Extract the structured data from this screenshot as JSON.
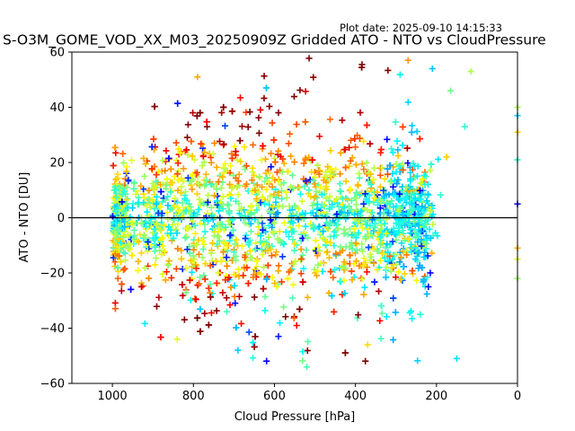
{
  "plot_date": "Plot date: 2025-09-10 14:15:33",
  "chart_data": {
    "type": "scatter",
    "title": "S-O3M_GOME_VOD_XX_M03_20250909Z Gridded ATO - NTO vs CloudPressure",
    "xlabel": "Cloud Pressure [hPa]",
    "ylabel": "ATO - NTO [DU]",
    "xlim": [
      1100,
      0
    ],
    "ylim": [
      -60,
      60
    ],
    "x_ticks": [
      1000,
      800,
      600,
      400,
      200,
      0
    ],
    "y_ticks": [
      -60,
      -40,
      -20,
      0,
      20,
      40,
      60
    ],
    "marker": "+",
    "colormap": "jet",
    "zero_line": true,
    "grid": false,
    "legend": "none",
    "distribution": [
      {
        "x": 985,
        "y": 0,
        "sx": 15,
        "sy": 8
      },
      {
        "x": 900,
        "y": 0,
        "sx": 40,
        "sy": 11
      },
      {
        "x": 800,
        "y": 0,
        "sx": 50,
        "sy": 14
      },
      {
        "x": 700,
        "y": 0,
        "sx": 50,
        "sy": 15
      },
      {
        "x": 600,
        "y": 0,
        "sx": 55,
        "sy": 14
      },
      {
        "x": 500,
        "y": 0,
        "sx": 55,
        "sy": 13
      },
      {
        "x": 400,
        "y": 0,
        "sx": 50,
        "sy": 12
      },
      {
        "x": 310,
        "y": 0,
        "sx": 40,
        "sy": 11
      },
      {
        "x": 250,
        "y": -2,
        "sx": 25,
        "sy": 9
      }
    ],
    "edge_points": [
      {
        "x": 0,
        "y": 5,
        "color": "#0000ff"
      },
      {
        "x": 0,
        "y": 40,
        "color": "#a8ff50"
      },
      {
        "x": 0,
        "y": 37,
        "color": "#00d4ff"
      },
      {
        "x": 0,
        "y": 31,
        "color": "#ffd200"
      },
      {
        "x": 0,
        "y": 21,
        "color": "#2affd0"
      },
      {
        "x": 0,
        "y": -11,
        "color": "#ffb300"
      },
      {
        "x": 0,
        "y": -22,
        "color": "#9aff60"
      },
      {
        "x": 0,
        "y": -15,
        "color": "#e6ff1a"
      },
      {
        "x": 520,
        "y": -54,
        "color": "#46ffb0"
      },
      {
        "x": 150,
        "y": -51,
        "color": "#00e0ff"
      },
      {
        "x": 220,
        "y": -25,
        "color": "#0000ff"
      },
      {
        "x": 210,
        "y": 54,
        "color": "#00c8ff"
      },
      {
        "x": 165,
        "y": 46,
        "color": "#6aff8c"
      },
      {
        "x": 115,
        "y": 53,
        "color": "#aaff4c"
      },
      {
        "x": 130,
        "y": 33,
        "color": "#2affd0"
      },
      {
        "x": 175,
        "y": 22,
        "color": "#ffcc00"
      },
      {
        "x": 590,
        "y": -43,
        "color": "#0020ff"
      },
      {
        "x": 690,
        "y": -48,
        "color": "#00ccff"
      },
      {
        "x": 840,
        "y": -44,
        "color": "#e0ff20"
      },
      {
        "x": 370,
        "y": -46,
        "color": "#ffdd00"
      },
      {
        "x": 790,
        "y": 51,
        "color": "#ffa500"
      },
      {
        "x": 620,
        "y": 47,
        "color": "#00b8ff"
      },
      {
        "x": 270,
        "y": 57,
        "color": "#ff9500"
      }
    ]
  }
}
